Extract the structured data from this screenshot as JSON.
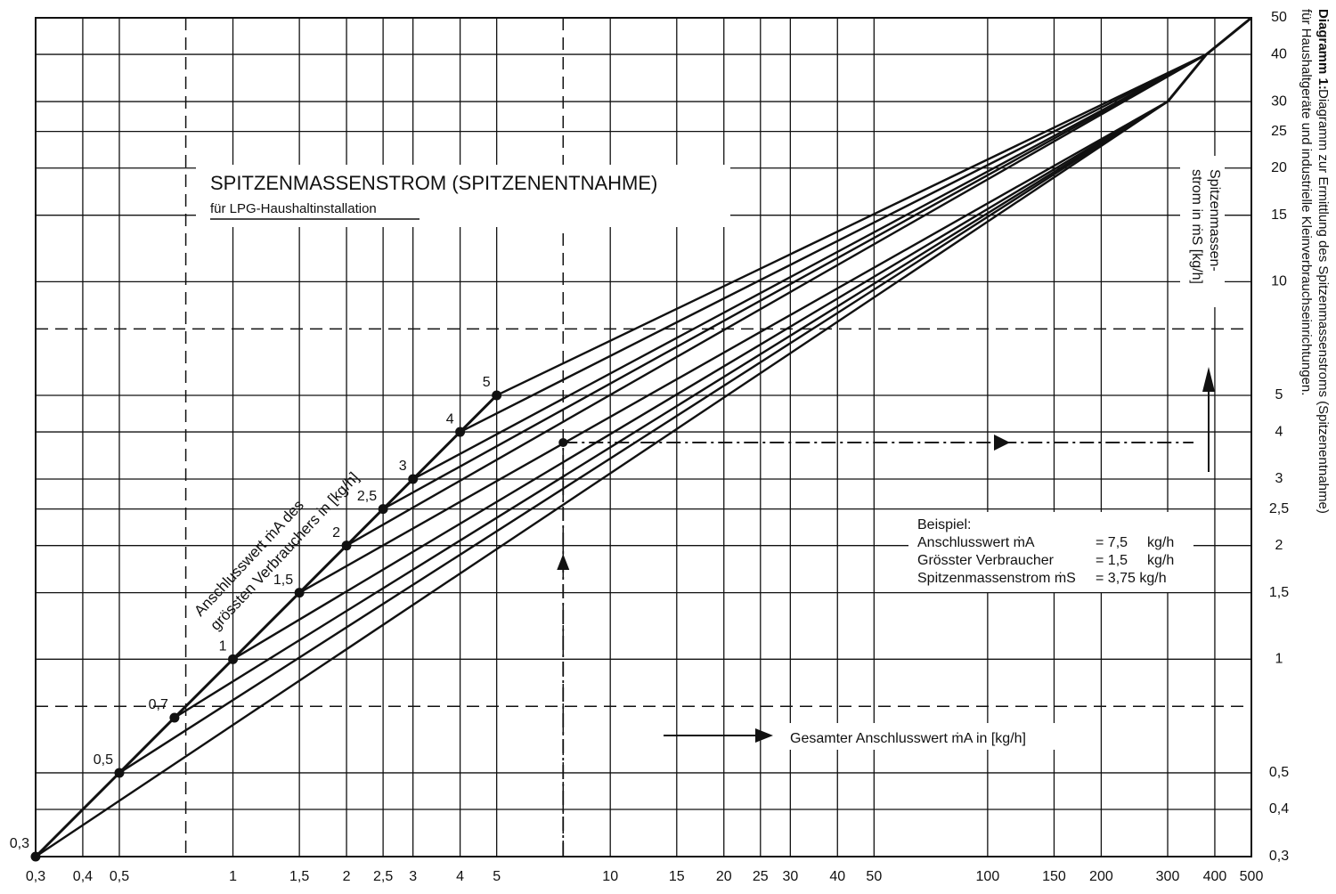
{
  "chart_data": {
    "type": "line",
    "title": "SPITZENMASSENSTROM (SPITZENENTNAHME)",
    "subtitle": "für LPG-Haushaltinstallation",
    "x_label": "Gesamter Anschlusswert ṁA in [kg/h]",
    "y_label": [
      "Spitzenmassen-",
      "strom in ṁS [kg/h]"
    ],
    "curve_label": [
      "Anschlusswert ṁA des",
      "grössten Verbrauchers in [kg/h]"
    ],
    "side_title": "Diagramm 1:",
    "side_text": [
      "Diagramm zur Ermittlung des Spitzenmassenstroms (Spitzenentnahme)",
      "für Haushaltgeräte und industrielle Kleinverbrauchseinrichtungen."
    ],
    "example": {
      "title": "Beispiel:",
      "rows": [
        [
          "Anschlusswert ṁA",
          "= 7,5",
          "kg/h"
        ],
        [
          "Grösster Verbraucher",
          "= 1,5",
          "kg/h"
        ],
        [
          "Spitzenmassenstrom ṁS",
          "= 3,75 kg/h"
        ]
      ],
      "x": 7.5,
      "y": 3.75
    },
    "log_x": true,
    "log_y": true,
    "grid": true,
    "color": "#111111",
    "xlim": [
      0.3,
      500
    ],
    "ylim": [
      0.3,
      50
    ],
    "xticks": [
      {
        "value": 0.3,
        "label": "0,3"
      },
      {
        "value": 0.4,
        "label": "0,4"
      },
      {
        "value": 0.5,
        "label": "0,5"
      },
      1,
      {
        "value": 1.5,
        "label": "1,5"
      },
      2,
      {
        "value": 2.5,
        "label": "2,5"
      },
      3,
      4,
      5,
      10,
      15,
      20,
      25,
      30,
      40,
      50,
      100,
      150,
      200,
      300,
      400,
      500
    ],
    "yticks": [
      {
        "value": 0.3,
        "label": "0,3"
      },
      {
        "value": 0.4,
        "label": "0,4"
      },
      {
        "value": 0.5,
        "label": "0,5"
      },
      1,
      {
        "value": 1.5,
        "label": "1,5"
      },
      2,
      {
        "value": 2.5,
        "label": "2,5"
      },
      3,
      4,
      5,
      10,
      15,
      20,
      25,
      30,
      40,
      50
    ],
    "guides": [
      0.75,
      7.5
    ],
    "series": [
      {
        "name": "0,3",
        "x": [
          0.3,
          300
        ],
        "values": [
          0.3,
          30
        ]
      },
      {
        "name": "0,5",
        "x": [
          0.5,
          300
        ],
        "values": [
          0.5,
          30
        ]
      },
      {
        "name": "0,7",
        "x": [
          0.7,
          300
        ],
        "values": [
          0.7,
          30
        ]
      },
      {
        "name": "1",
        "x": [
          1,
          300
        ],
        "values": [
          1,
          30
        ]
      },
      {
        "name": "1,5",
        "x": [
          1.5,
          300
        ],
        "values": [
          1.5,
          30
        ]
      },
      {
        "name": "2",
        "x": [
          2,
          380
        ],
        "values": [
          2,
          40
        ]
      },
      {
        "name": "2,5",
        "x": [
          2.5,
          380
        ],
        "values": [
          2.5,
          40
        ]
      },
      {
        "name": "3",
        "x": [
          3,
          380
        ],
        "values": [
          3,
          40
        ]
      },
      {
        "name": "4",
        "x": [
          4,
          380
        ],
        "values": [
          4,
          40
        ]
      },
      {
        "name": "5",
        "x": [
          5,
          380
        ],
        "values": [
          5,
          40
        ]
      }
    ],
    "envelope": {
      "x": [
        0.3,
        0.5,
        0.7,
        1,
        1.5,
        2,
        2.5,
        3,
        4,
        5
      ],
      "values": [
        0.3,
        0.5,
        0.7,
        1,
        1.5,
        2,
        2.5,
        3,
        4,
        5
      ]
    },
    "trunk": {
      "x": [
        300,
        380,
        500
      ],
      "values": [
        30,
        40,
        50
      ]
    }
  }
}
